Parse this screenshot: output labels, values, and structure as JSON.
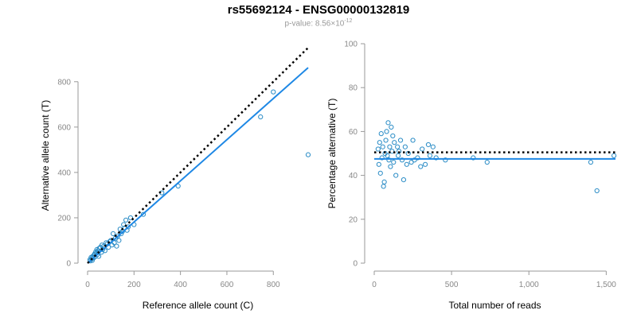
{
  "title": "rs55692124 - ENSG00000132819",
  "subtitle": {
    "prefix": "p-value: 8.56×10",
    "exponent": "-12"
  },
  "chart_data": [
    {
      "type": "scatter",
      "xlabel": "Reference allele count (C)",
      "ylabel": "Alternative allele count (T)",
      "xlim": [
        0,
        950
      ],
      "ylim": [
        0,
        950
      ],
      "xticks": [
        0,
        200,
        400,
        600,
        800
      ],
      "xtick_labels": [
        "0",
        "200",
        "400",
        "600",
        "800"
      ],
      "yticks": [
        0,
        200,
        400,
        600,
        800
      ],
      "ytick_labels": [
        "0",
        "200",
        "400",
        "600",
        "800"
      ],
      "grid": false,
      "colors": {
        "points": "#2a8cc6",
        "fit": "#1e88e5",
        "reference": "#000000"
      },
      "points": {
        "x": [
          10,
          12,
          15,
          18,
          20,
          22,
          25,
          28,
          30,
          32,
          35,
          38,
          40,
          42,
          45,
          48,
          50,
          55,
          60,
          62,
          65,
          70,
          75,
          80,
          85,
          90,
          95,
          100,
          105,
          110,
          115,
          120,
          125,
          130,
          135,
          140,
          145,
          150,
          155,
          160,
          165,
          170,
          175,
          185,
          200,
          240,
          320,
          390,
          745,
          800,
          950
        ],
        "y": [
          15,
          10,
          25,
          20,
          12,
          30,
          22,
          35,
          40,
          28,
          50,
          45,
          60,
          38,
          55,
          30,
          65,
          70,
          48,
          80,
          60,
          75,
          55,
          90,
          85,
          70,
          95,
          100,
          80,
          130,
          90,
          110,
          75,
          120,
          100,
          150,
          130,
          140,
          170,
          155,
          190,
          145,
          160,
          200,
          170,
          215,
          310,
          340,
          645,
          755,
          478
        ]
      },
      "fit_line": {
        "x": [
          0,
          950
        ],
        "y": [
          0,
          862
        ]
      },
      "reference_line": {
        "x": [
          0,
          950
        ],
        "y": [
          0,
          950
        ]
      }
    },
    {
      "type": "scatter",
      "xlabel": "Total number of reads",
      "ylabel": "Percentage alternative (T)",
      "xlim": [
        0,
        1560
      ],
      "ylim": [
        0,
        100
      ],
      "xticks": [
        0,
        500,
        1000,
        1500
      ],
      "xtick_labels": [
        "0",
        "500",
        "1,000",
        "1,500"
      ],
      "yticks": [
        0,
        20,
        40,
        60,
        80,
        100
      ],
      "ytick_labels": [
        "0",
        "20",
        "40",
        "60",
        "80",
        "100"
      ],
      "grid": false,
      "colors": {
        "points": "#2a8cc6",
        "fit": "#1e88e5",
        "reference": "#000000"
      },
      "points": {
        "x": [
          25,
          30,
          35,
          40,
          45,
          50,
          55,
          60,
          65,
          70,
          75,
          80,
          85,
          90,
          95,
          100,
          105,
          110,
          115,
          120,
          125,
          130,
          140,
          150,
          155,
          160,
          170,
          180,
          190,
          200,
          210,
          220,
          240,
          250,
          260,
          280,
          300,
          310,
          330,
          350,
          360,
          380,
          400,
          460,
          640,
          730,
          1400,
          1440,
          1550
        ],
        "y": [
          52,
          45,
          55,
          41,
          59,
          48,
          53,
          35,
          37,
          50,
          56,
          60,
          49,
          64,
          47,
          53,
          44,
          62,
          51,
          58,
          46,
          55,
          40,
          53,
          49,
          51,
          56,
          47,
          38,
          53,
          45,
          50,
          46,
          56,
          47,
          48,
          44,
          52,
          45,
          54,
          49,
          53,
          48,
          47,
          48,
          46,
          46,
          33,
          49
        ]
      },
      "fit_line": {
        "x": [
          0,
          1560
        ],
        "y": [
          47.5,
          47.5
        ]
      },
      "reference_line": {
        "x": [
          0,
          1560
        ],
        "y": [
          50.5,
          50.5
        ]
      }
    }
  ]
}
